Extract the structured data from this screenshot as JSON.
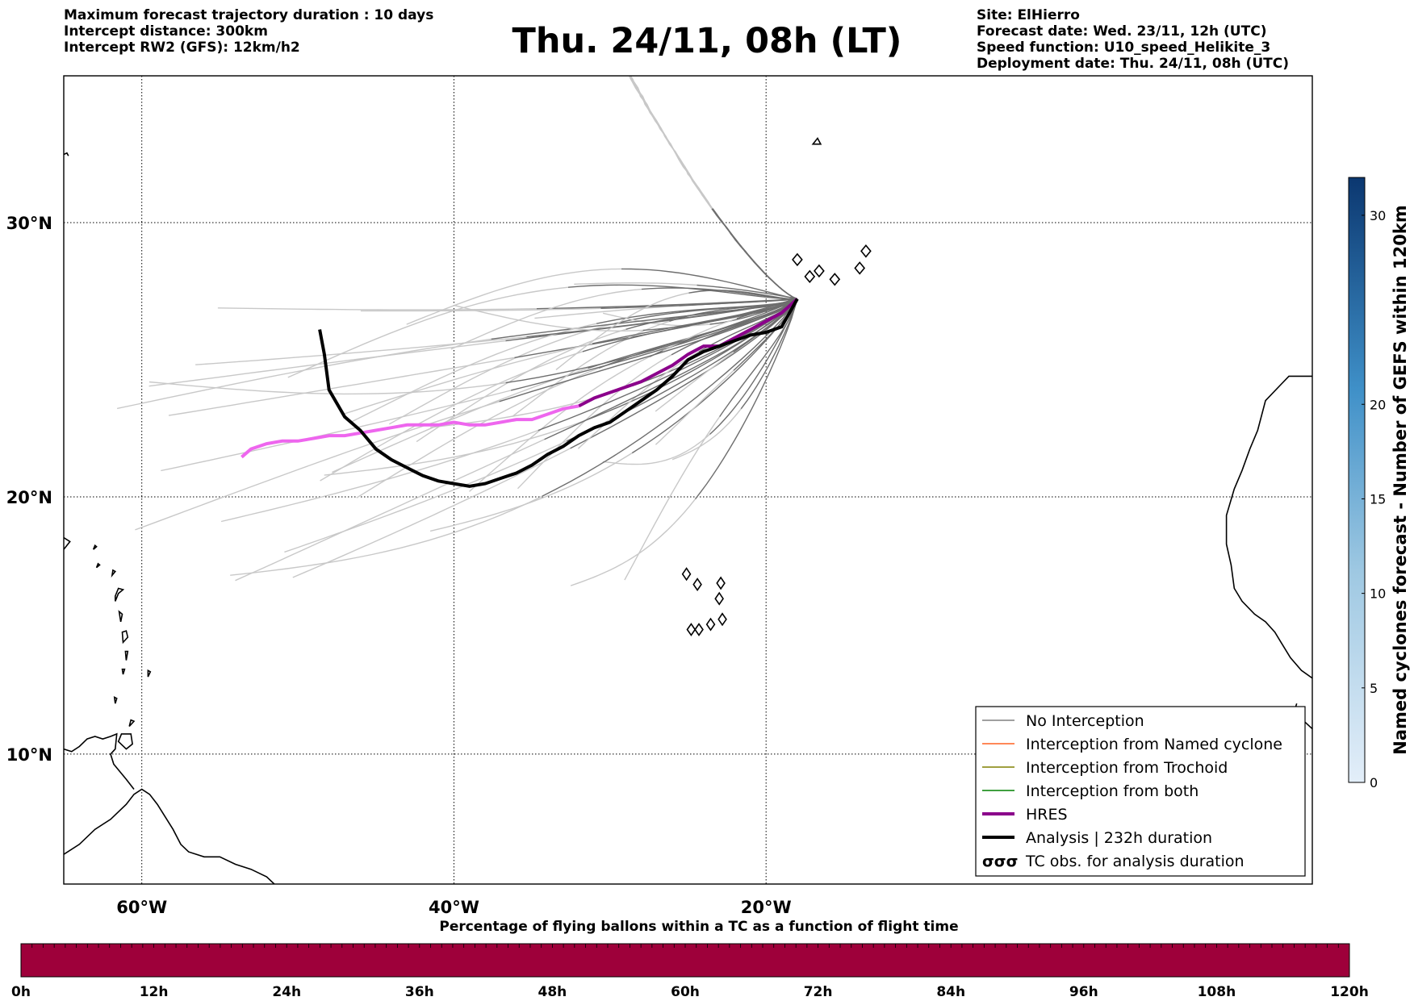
{
  "header_left": [
    "Maximum forecast trajectory duration : 10 days",
    "Intercept distance: 300km",
    "Intercept RW2 (GFS):  12km/h2"
  ],
  "header_right": [
    "Site: ElHierro",
    "Forecast date: Wed. 23/11, 12h (UTC)",
    "Speed function: U10_speed_Helikite_3",
    "Deployment date: Thu. 24/11, 08h (UTC)"
  ],
  "title": "Thu. 24/11, 08h (LT)",
  "map": {
    "lon_range": [
      -65,
      15
    ],
    "lat_range": [
      5,
      34.5
    ],
    "lat_ticks": [
      {
        "value": 30,
        "label": "30°N"
      },
      {
        "value": 20,
        "label": "20°N"
      },
      {
        "value": 10,
        "label": "10°N"
      }
    ],
    "lon_ticks": [
      {
        "value": -60,
        "label": "60°W"
      },
      {
        "value": -40,
        "label": "40°W"
      },
      {
        "value": -20,
        "label": "20°W"
      }
    ],
    "grid": "dotted"
  },
  "colorbar": {
    "label": "Named cyclones forecast - Number of GEFS within 120km",
    "ticks": [
      "0",
      "5",
      "10",
      "15",
      "20",
      "30"
    ],
    "range": [
      0,
      32
    ]
  },
  "legend": {
    "items": [
      {
        "label": "No Interception",
        "color": "#808080",
        "style": "thin"
      },
      {
        "label": "Interception from Named cyclone",
        "color": "#ff6020",
        "style": "thin"
      },
      {
        "label": "Interception from Trochoid",
        "color": "#808000",
        "style": "thin"
      },
      {
        "label": "Interception from both",
        "color": "#008000",
        "style": "thin"
      },
      {
        "label": "HRES",
        "color": "#8b008b",
        "style": "thick"
      },
      {
        "label": "Analysis | 232h duration",
        "color": "#000000",
        "style": "thick"
      },
      {
        "label": "TC obs. for analysis duration",
        "color": "#000000",
        "style": "symbol"
      }
    ]
  },
  "bottom_bar": {
    "title": "Percentage of flying ballons within a TC as a function of flight time",
    "ticks": [
      "0h",
      "12h",
      "24h",
      "36h",
      "48h",
      "60h",
      "72h",
      "84h",
      "96h",
      "108h",
      "120h"
    ],
    "color": "#9e003a"
  },
  "chart_data": {
    "type": "line",
    "x_unit": "longitude (deg, negative = W)",
    "y_unit": "latitude (deg N)",
    "series": [
      {
        "name": "HRES",
        "color": "#8b008b",
        "points": [
          [
            -18,
            27.3
          ],
          [
            -19,
            26.8
          ],
          [
            -20,
            26.5
          ],
          [
            -21,
            26.2
          ],
          [
            -22,
            25.9
          ],
          [
            -23,
            25.6
          ],
          [
            -24,
            25.6
          ],
          [
            -25,
            25.3
          ],
          [
            -26,
            24.9
          ],
          [
            -27,
            24.6
          ],
          [
            -28,
            24.3
          ],
          [
            -29,
            24.1
          ],
          [
            -30,
            23.9
          ],
          [
            -31,
            23.7
          ],
          [
            -32,
            23.4
          ],
          [
            -33,
            23.3
          ],
          [
            -34,
            23.1
          ],
          [
            -35,
            22.9
          ],
          [
            -36,
            22.9
          ],
          [
            -37,
            22.8
          ],
          [
            -38,
            22.7
          ],
          [
            -39,
            22.7
          ],
          [
            -40,
            22.8
          ],
          [
            -41,
            22.7
          ],
          [
            -42,
            22.7
          ],
          [
            -43,
            22.7
          ],
          [
            -44,
            22.6
          ],
          [
            -45,
            22.5
          ],
          [
            -46,
            22.4
          ],
          [
            -47,
            22.3
          ],
          [
            -48,
            22.3
          ],
          [
            -49,
            22.2
          ],
          [
            -50,
            22.1
          ],
          [
            -51,
            22.1
          ],
          [
            -52,
            22.0
          ],
          [
            -53,
            21.8
          ],
          [
            -53.6,
            21.5
          ]
        ]
      },
      {
        "name": "Analysis | 232h duration",
        "color": "#000000",
        "points": [
          [
            -18,
            27.3
          ],
          [
            -19,
            26.3
          ],
          [
            -20,
            26.1
          ],
          [
            -21,
            26.0
          ],
          [
            -22,
            25.8
          ],
          [
            -23,
            25.6
          ],
          [
            -24,
            25.4
          ],
          [
            -25,
            25.1
          ],
          [
            -26,
            24.5
          ],
          [
            -27,
            24.0
          ],
          [
            -28,
            23.6
          ],
          [
            -29,
            23.2
          ],
          [
            -30,
            22.8
          ],
          [
            -31,
            22.6
          ],
          [
            -32,
            22.3
          ],
          [
            -33,
            21.9
          ],
          [
            -34,
            21.6
          ],
          [
            -35,
            21.2
          ],
          [
            -36,
            20.9
          ],
          [
            -37,
            20.7
          ],
          [
            -38,
            20.5
          ],
          [
            -39,
            20.4
          ],
          [
            -40,
            20.5
          ],
          [
            -41,
            20.6
          ],
          [
            -42,
            20.8
          ],
          [
            -43,
            21.1
          ],
          [
            -44,
            21.4
          ],
          [
            -45,
            21.8
          ],
          [
            -46,
            22.5
          ],
          [
            -47,
            23.0
          ],
          [
            -48,
            24.0
          ],
          [
            -48.3,
            25.3
          ],
          [
            -48.6,
            26.2
          ]
        ]
      }
    ],
    "ensemble": {
      "name": "No Interception",
      "member_count": 50,
      "origin": [
        -18,
        27.3
      ]
    }
  }
}
